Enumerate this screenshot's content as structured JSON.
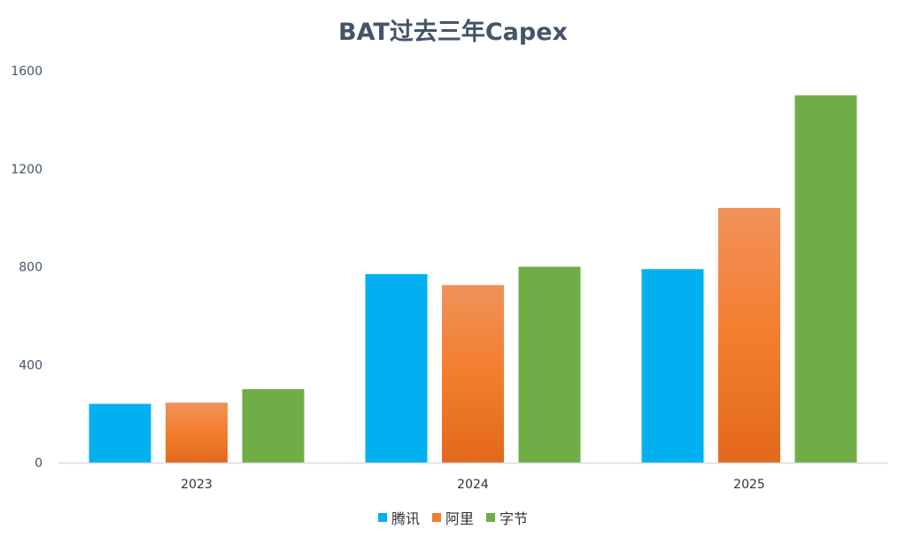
{
  "chart_data": {
    "type": "bar",
    "title": "BAT过去三年Capex",
    "categories": [
      "2023",
      "2024",
      "2025"
    ],
    "series": [
      {
        "name": "腾讯",
        "values": [
          240,
          770,
          790
        ],
        "color": "#00b0f0"
      },
      {
        "name": "阿里",
        "values": [
          245,
          725,
          1040
        ],
        "color": "#ed7d31"
      },
      {
        "name": "字节",
        "values": [
          300,
          800,
          1500
        ],
        "color": "#70ad47"
      }
    ],
    "ylim": [
      0,
      1600
    ],
    "yticks": [
      0,
      400,
      800,
      1200,
      1600
    ],
    "grid": false,
    "legend": "bottom"
  }
}
